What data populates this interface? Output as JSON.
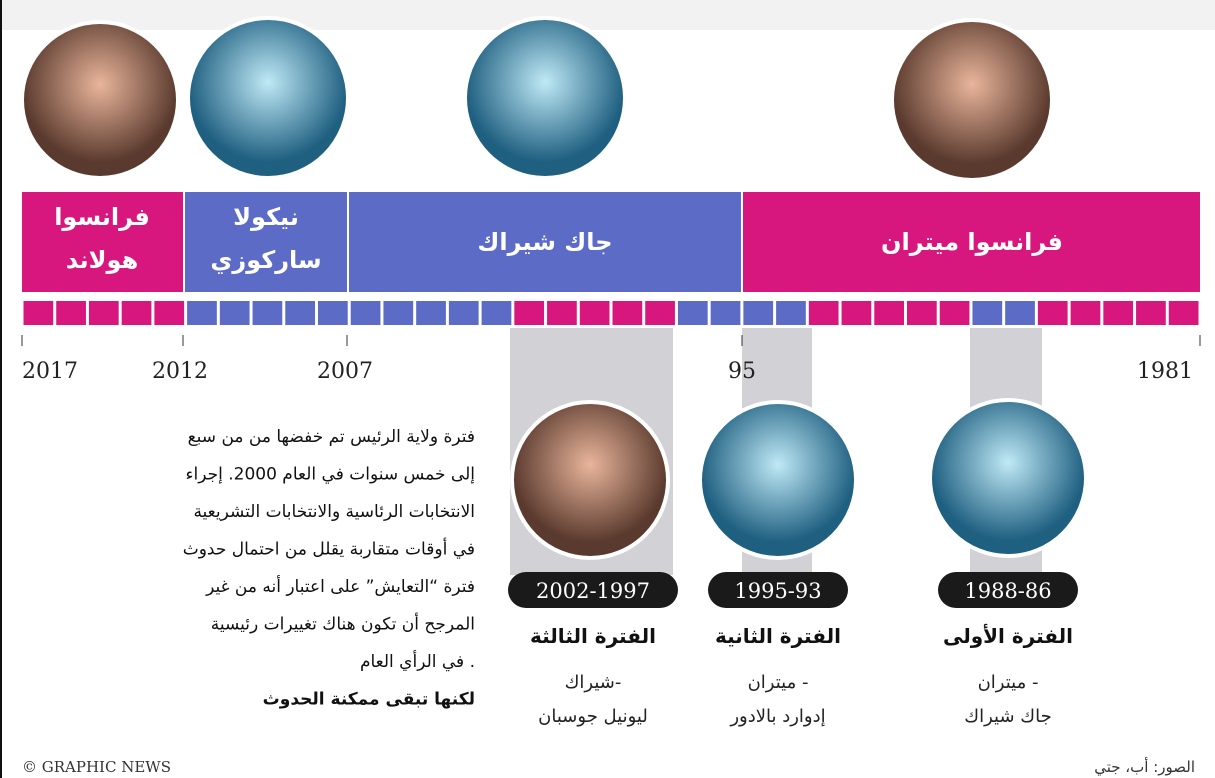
{
  "presidents": [
    {
      "name": "فرانسوا هولاند",
      "lines": [
        "فرانسوا",
        "هولاند"
      ]
    },
    {
      "name": "نيكولا ساركوزي",
      "lines": [
        "نيكولا",
        "ساركوزي"
      ]
    },
    {
      "name": "جاك شيراك"
    },
    {
      "name": "فرانسوا ميتران"
    }
  ],
  "years": [
    "2017",
    "2012",
    "2007",
    "95",
    "1981"
  ],
  "periods": [
    {
      "dates": "2002-1997",
      "title": "الفترة الثالثة",
      "lines": [
        "شيراك-",
        "ليونيل جوسبان"
      ]
    },
    {
      "dates": "1995-93",
      "title": "الفترة الثانية",
      "lines": [
        "ميتران -",
        "إدوارد بالادور"
      ]
    },
    {
      "dates": "1988-86",
      "title": "الفترة الأولى",
      "lines": [
        "ميتران -",
        "جاك شيراك"
      ]
    }
  ],
  "note": {
    "lines": [
      "فترة ولاية الرئيس تم خفضها من من سبع",
      "إلى خمس سنوات في العام 2000. إجراء",
      "الانتخابات الرئاسية والانتخابات التشريعية",
      "في أوقات متقاربة يقلل من احتمال حدوث",
      "فترة “التعايش” على اعتبار أنه من غير",
      "المرجح أن تكون هناك  تغييرات رئيسية",
      "في الرأي العام ."
    ],
    "bold": "لكنها تبقى ممكنة الحدوث"
  },
  "credits": {
    "left": "© GRAPHIC NEWS",
    "right": "الصور: أب، جتي"
  }
}
